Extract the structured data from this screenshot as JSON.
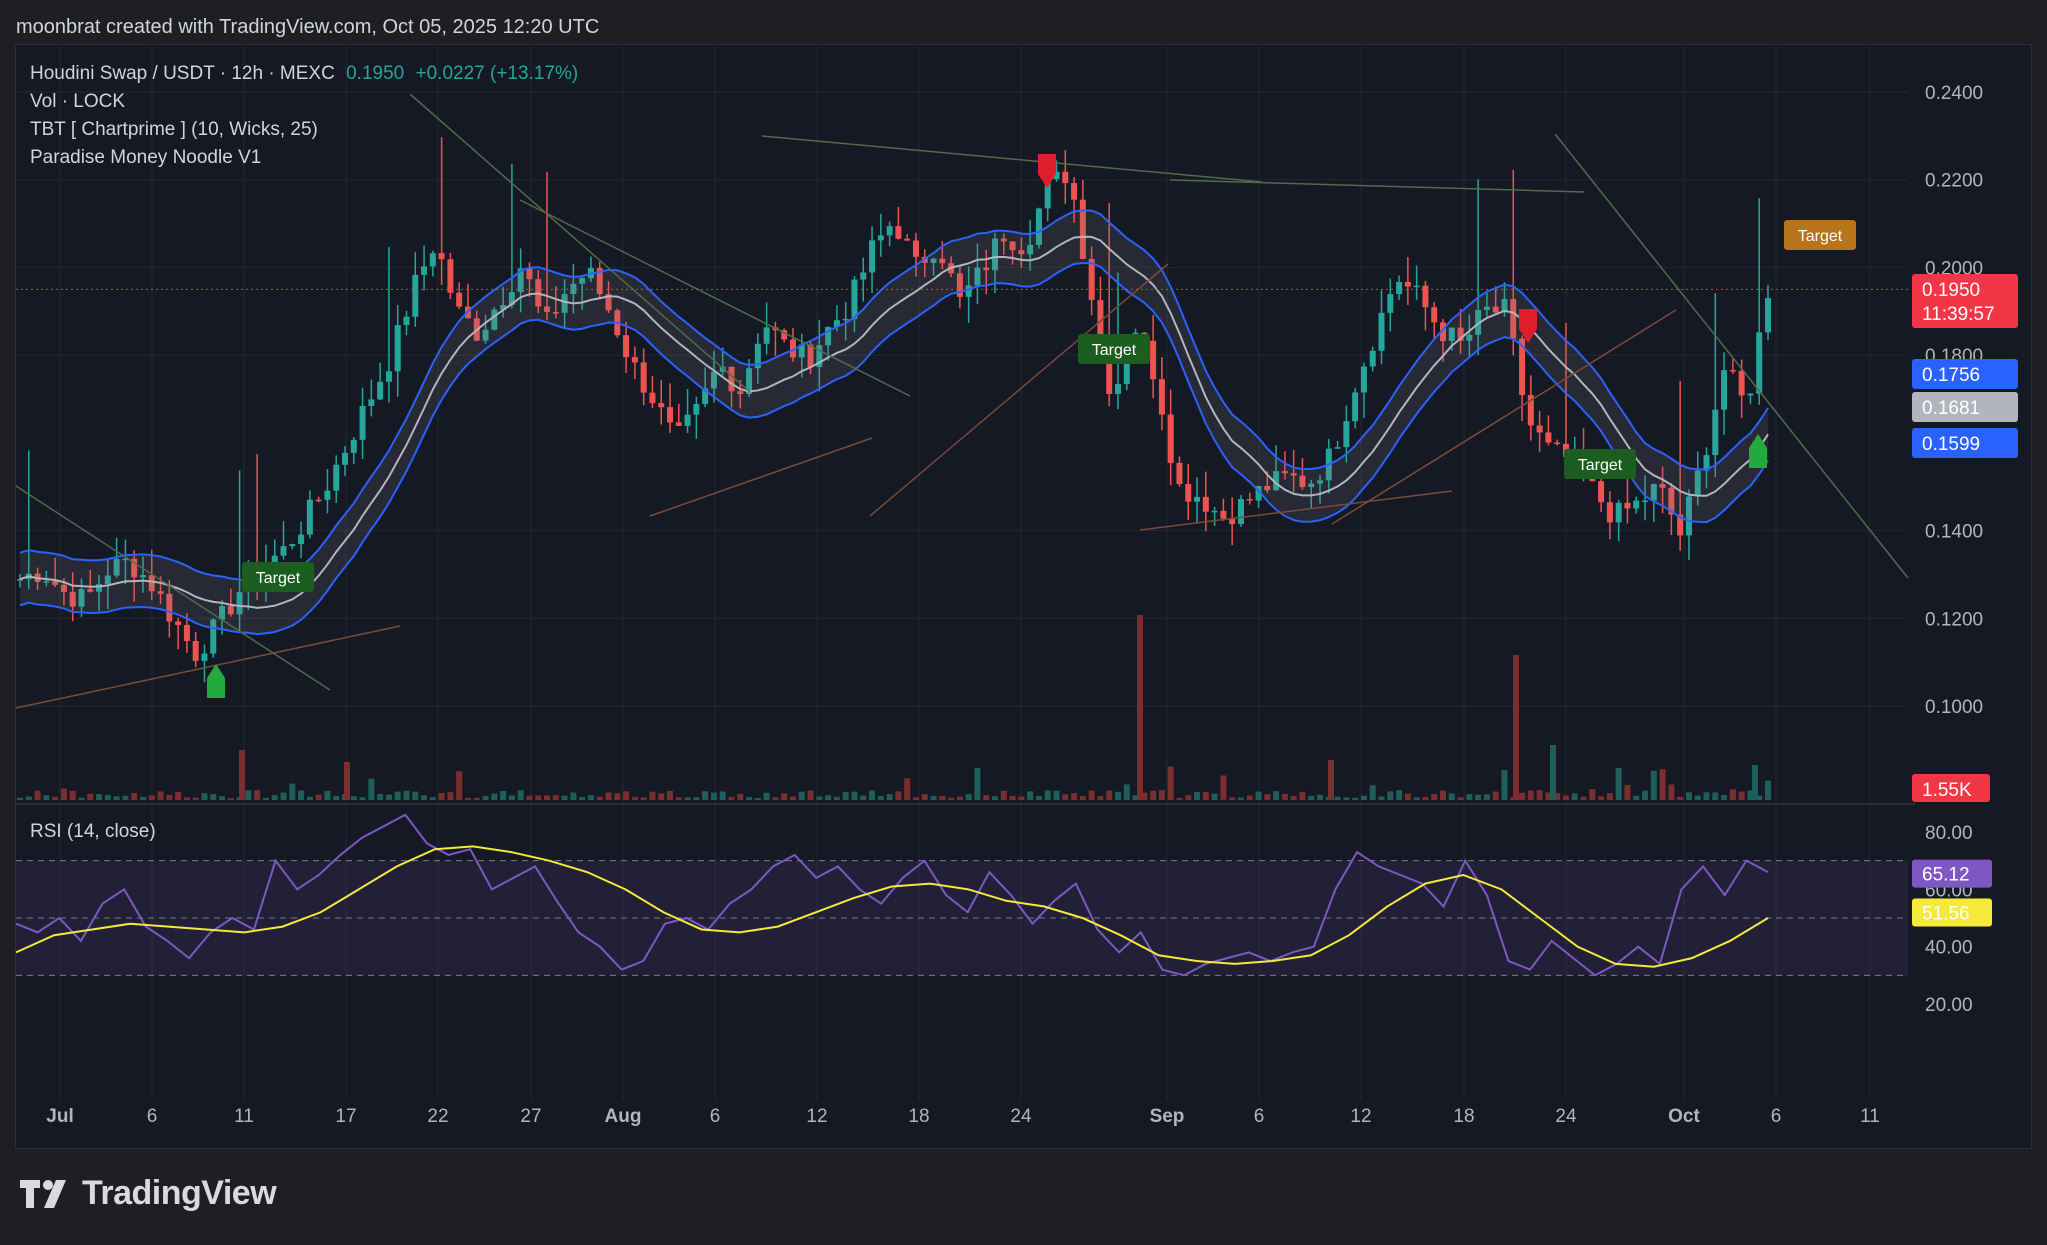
{
  "header": {
    "attribution": "moonbrat created with TradingView.com, Oct 05, 2025 12:20 UTC"
  },
  "legend": {
    "symbol": "Houdini Swap / USDT · 12h · MEXC",
    "price": "0.1950",
    "change": "+0.0227 (+13.17%)",
    "indicator_1": "Vol · LOCK",
    "indicator_2": "TBT [ Chartprime ] (10, Wicks,   25)",
    "indicator_3": "Paradise Money Noodle V1",
    "rsi": "RSI (14, close)"
  },
  "footer": {
    "brand": "TradingView"
  },
  "colors": {
    "up": "#26a69a",
    "down": "#ef5350",
    "band_blue": "#2962ff",
    "band_mid": "#b2b5be",
    "rsi_line": "#7e57c2",
    "rsi_ma": "#f5e93a",
    "target_green": "#1b5e20",
    "target_orange": "#b8741a"
  },
  "chart_data": [
    {
      "type": "candlestick",
      "symbol": "Houdini Swap / USDT",
      "timeframe": "12h",
      "exchange": "MEXC",
      "price_axis": {
        "min": 0.09,
        "max": 0.245,
        "ticks": [
          "0.2400",
          "0.2200",
          "0.2000",
          "0.1800",
          "0.1400",
          "0.1200",
          "0.1000"
        ]
      },
      "time_axis": [
        "Jul",
        "6",
        "11",
        "17",
        "22",
        "27",
        "Aug",
        "6",
        "12",
        "18",
        "24",
        "Sep",
        "6",
        "12",
        "18",
        "24",
        "Oct",
        "6",
        "11"
      ],
      "close_path": [
        0.129,
        0.131,
        0.126,
        0.124,
        0.131,
        0.133,
        0.128,
        0.12,
        0.112,
        0.118,
        0.126,
        0.132,
        0.135,
        0.142,
        0.15,
        0.16,
        0.17,
        0.18,
        0.195,
        0.206,
        0.19,
        0.185,
        0.193,
        0.201,
        0.186,
        0.195,
        0.199,
        0.19,
        0.178,
        0.17,
        0.16,
        0.167,
        0.178,
        0.172,
        0.188,
        0.182,
        0.179,
        0.186,
        0.192,
        0.204,
        0.211,
        0.2,
        0.206,
        0.192,
        0.199,
        0.208,
        0.205,
        0.218,
        0.222,
        0.195,
        0.17,
        0.187,
        0.175,
        0.15,
        0.148,
        0.143,
        0.146,
        0.15,
        0.152,
        0.151,
        0.157,
        0.172,
        0.185,
        0.198,
        0.193,
        0.186,
        0.182,
        0.19,
        0.19,
        0.165,
        0.158,
        0.156,
        0.149,
        0.143,
        0.146,
        0.15,
        0.139,
        0.156,
        0.177,
        0.168,
        0.195
      ],
      "price_badges": [
        {
          "label": "0.1950",
          "value": 0.195,
          "color": "#f23645"
        },
        {
          "label": "11:39:57",
          "value": 0.195,
          "color": "#f23645"
        },
        {
          "label": "0.1756",
          "value": 0.1756,
          "color": "#2962ff"
        },
        {
          "label": "0.1681",
          "value": 0.1681,
          "color": "#b2b5be"
        },
        {
          "label": "0.1599",
          "value": 0.1599,
          "color": "#2962ff"
        }
      ],
      "volume_badge": {
        "label": "1.55K",
        "color": "#f23645"
      },
      "target_labels": [
        "Target",
        "Target",
        "Target",
        "Target"
      ]
    },
    {
      "type": "line",
      "title": "RSI (14, close)",
      "y_axis": {
        "min": 15,
        "max": 88,
        "ticks": [
          "80.00",
          "60.00",
          "40.00",
          "20.00"
        ]
      },
      "bands": [
        70,
        50,
        30
      ],
      "rsi_path": [
        48,
        45,
        50,
        42,
        55,
        60,
        47,
        42,
        36,
        45,
        50,
        46,
        70,
        60,
        65,
        72,
        78,
        82,
        86,
        76,
        72,
        74,
        60,
        64,
        68,
        56,
        45,
        40,
        32,
        35,
        48,
        50,
        46,
        55,
        60,
        68,
        72,
        64,
        68,
        60,
        55,
        64,
        70,
        58,
        52,
        66,
        58,
        48,
        56,
        62,
        46,
        38,
        45,
        32,
        30,
        34,
        36,
        38,
        35,
        38,
        40,
        60,
        73,
        68,
        65,
        62,
        54,
        70,
        58,
        35,
        32,
        42,
        36,
        30,
        34,
        40,
        34,
        60,
        68,
        58,
        70,
        66
      ],
      "ma_path": [
        38,
        44,
        46,
        48,
        47,
        46,
        45,
        47,
        52,
        60,
        68,
        74,
        75,
        73,
        70,
        66,
        60,
        52,
        46,
        45,
        47,
        52,
        57,
        61,
        62,
        60,
        56,
        54,
        50,
        44,
        37,
        35,
        34,
        35,
        37,
        44,
        54,
        62,
        65,
        60,
        50,
        40,
        34,
        33,
        36,
        42,
        50
      ],
      "badges": [
        {
          "label": "65.12",
          "value": 65.12,
          "color": "#7e57c2"
        },
        {
          "label": "51.56",
          "value": 51.56,
          "color": "#f5e93a"
        }
      ]
    }
  ]
}
